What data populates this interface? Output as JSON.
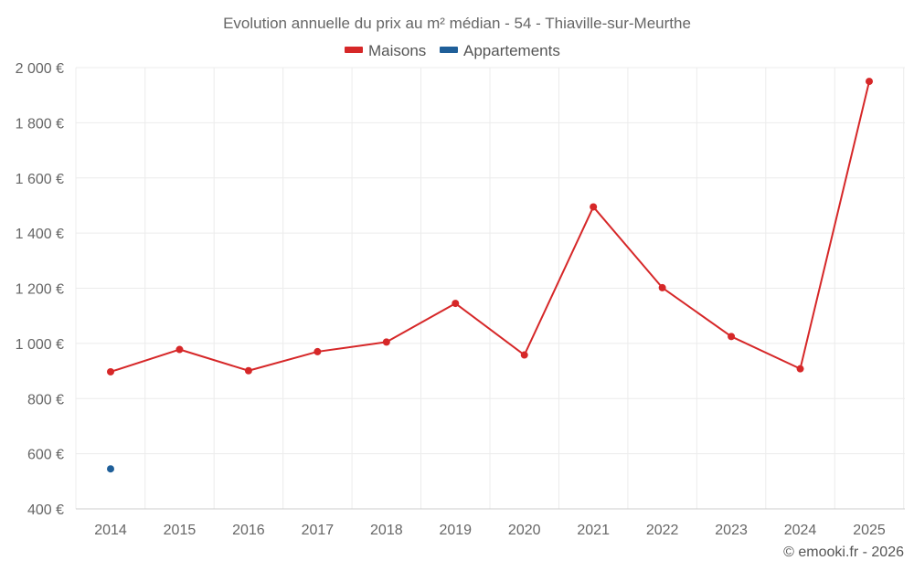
{
  "chart_data": {
    "type": "line",
    "title": "Evolution annuelle du prix au m² médian - 54 - Thiaville-sur-Meurthe",
    "categories": [
      "2014",
      "2015",
      "2016",
      "2017",
      "2018",
      "2019",
      "2020",
      "2021",
      "2022",
      "2023",
      "2024",
      "2025"
    ],
    "series": [
      {
        "name": "Maisons",
        "color": "#d62728",
        "values": [
          897,
          978,
          901,
          970,
          1005,
          1145,
          958,
          1495,
          1202,
          1025,
          908,
          1950
        ]
      },
      {
        "name": "Appartements",
        "color": "#1f5f99",
        "values": [
          545,
          null,
          null,
          null,
          null,
          null,
          null,
          null,
          null,
          null,
          null,
          null
        ]
      }
    ],
    "ylim": [
      400,
      2000
    ],
    "yticks": [
      400,
      600,
      800,
      1000,
      1200,
      1400,
      1600,
      1800,
      2000
    ],
    "ytick_labels": [
      "400 €",
      "600 €",
      "800 €",
      "1 000 €",
      "1 200 €",
      "1 400 €",
      "1 600 €",
      "1 800 €",
      "2 000 €"
    ],
    "xlabel": "",
    "ylabel": "",
    "grid": true,
    "legend_position": "top-center",
    "credit": "© emooki.fr - 2026"
  }
}
